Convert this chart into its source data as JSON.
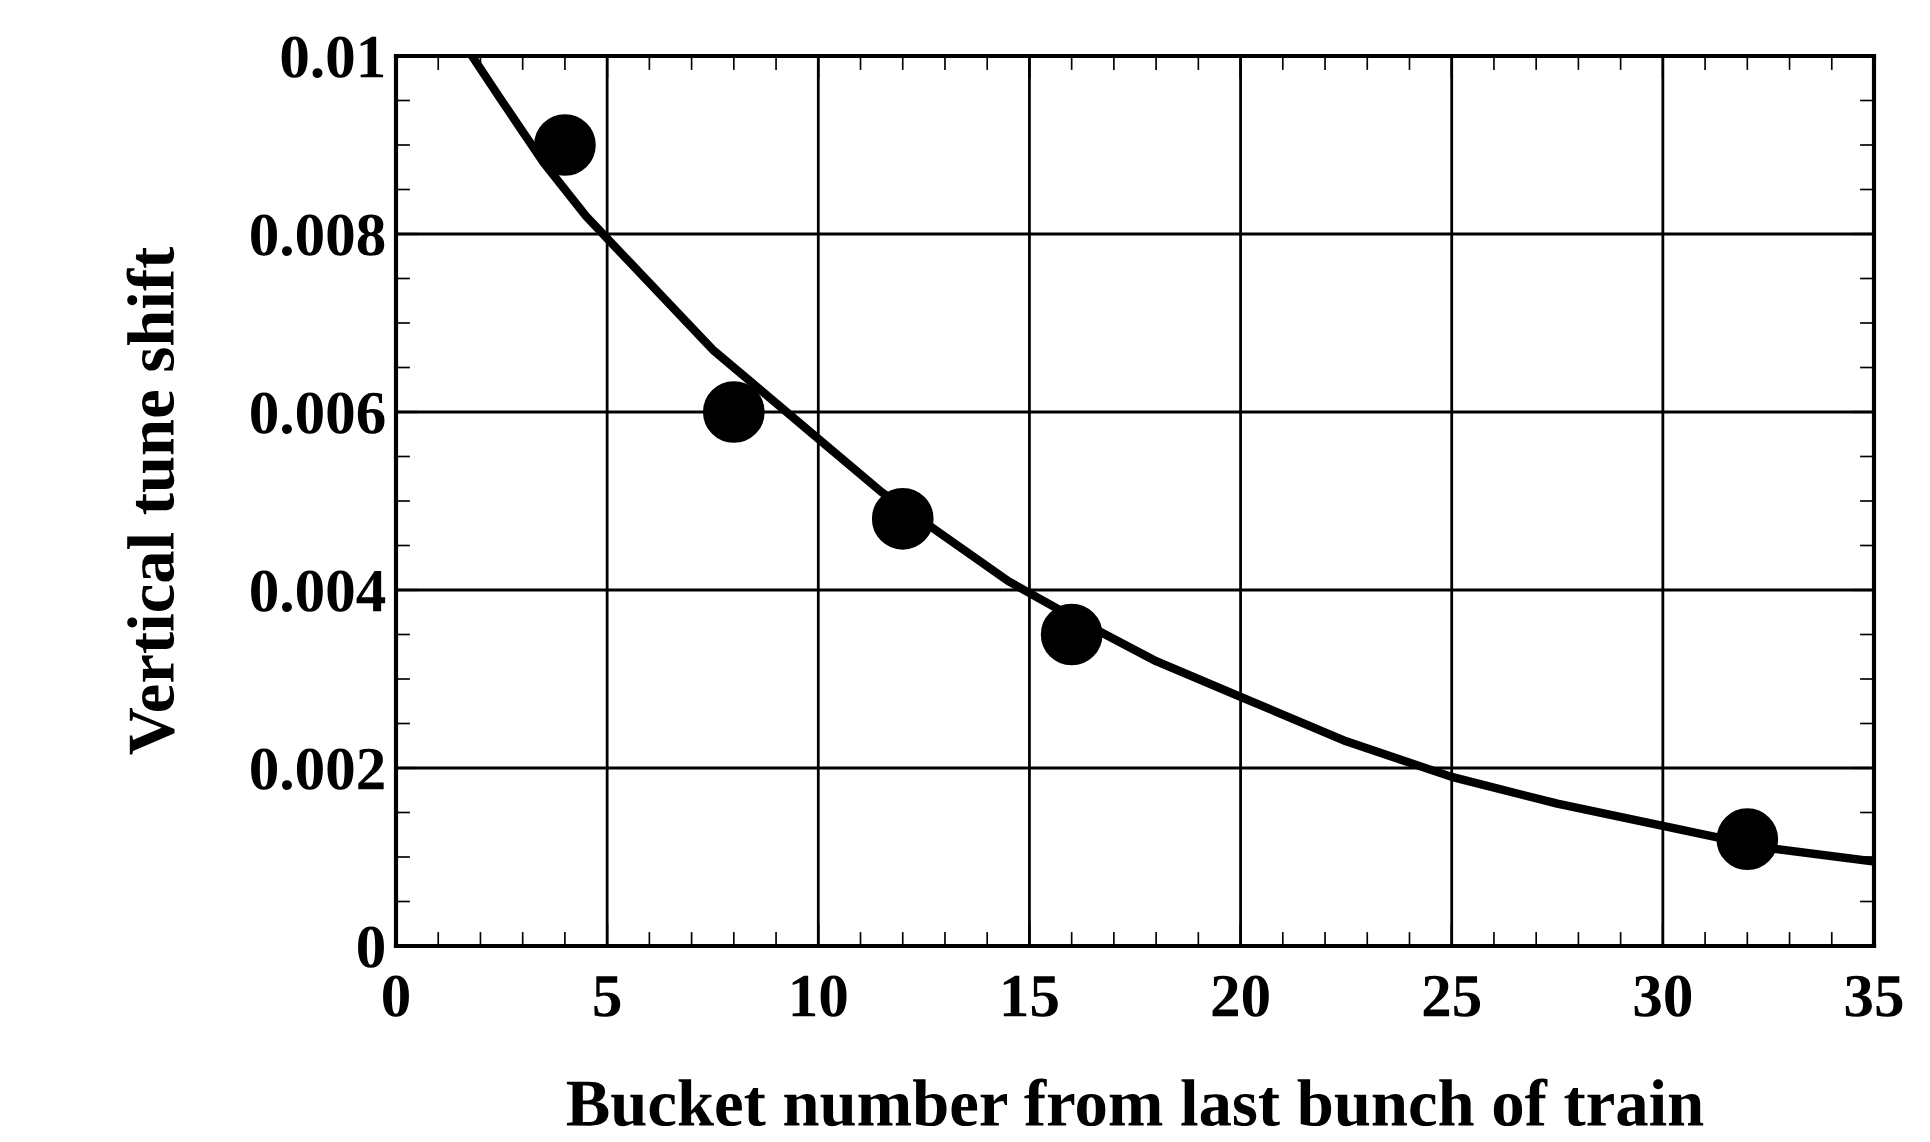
{
  "chart_data": {
    "type": "scatter",
    "xlabel": "Bucket number from last bunch of train",
    "ylabel": "Vertical tune shift",
    "xlim": [
      0,
      35
    ],
    "xticks": [
      0,
      5,
      10,
      15,
      20,
      25,
      30,
      35
    ],
    "ylim": [
      0,
      0.01
    ],
    "yticks": [
      0,
      0.002,
      0.004,
      0.006,
      0.008,
      0.01
    ],
    "grid": true,
    "marker": "circle",
    "legend": false,
    "series": [
      {
        "color": "#000000",
        "x": [
          4,
          8,
          12,
          16,
          32
        ],
        "values": [
          0.009,
          0.006,
          0.0048,
          0.0035,
          0.0012
        ]
      },
      {
        "type": "line",
        "color": "#000000",
        "marker": "none",
        "line_style": "solid",
        "x": [
          1.8,
          2.5,
          3.5,
          4.5,
          5.5,
          6.5,
          7.5,
          8.5,
          10,
          11.5,
          13,
          14.5,
          16,
          18,
          20,
          22.5,
          25,
          27.5,
          30,
          32.5,
          35
        ],
        "values": [
          0.01,
          0.0095,
          0.0088,
          0.0082,
          0.0077,
          0.0072,
          0.0067,
          0.0063,
          0.0057,
          0.0051,
          0.0046,
          0.0041,
          0.0037,
          0.0032,
          0.0028,
          0.0023,
          0.0019,
          0.0016,
          0.00135,
          0.0011,
          0.00095
        ]
      }
    ]
  }
}
